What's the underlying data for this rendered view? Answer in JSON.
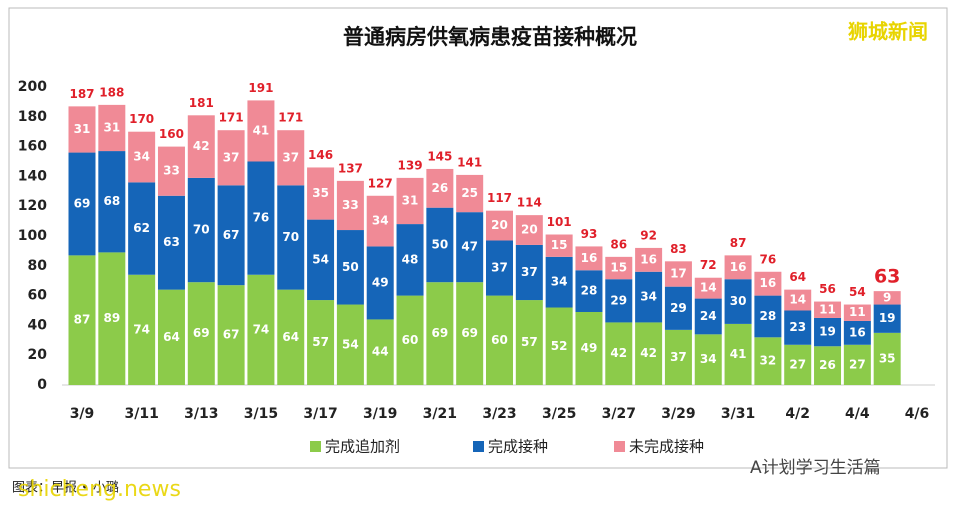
{
  "chart_data": {
    "type": "stacked-bar",
    "title": "普通病房供氧病患疫苗接种概况",
    "categories": [
      "3/9",
      null,
      "3/11",
      null,
      "3/13",
      null,
      "3/15",
      null,
      "3/17",
      null,
      "3/19",
      null,
      "3/21",
      null,
      "3/23",
      null,
      "3/25",
      null,
      "3/27",
      null,
      "3/29",
      null,
      "3/31",
      null,
      "4/2",
      null,
      "4/4",
      null,
      "4/6"
    ],
    "series": [
      {
        "name": "完成追加剂",
        "color": "#8ccb4a",
        "values": [
          87,
          89,
          74,
          64,
          69,
          67,
          74,
          64,
          57,
          54,
          44,
          60,
          69,
          69,
          60,
          57,
          52,
          49,
          42,
          42,
          37,
          34,
          41,
          32,
          27,
          26,
          27,
          35,
          null
        ]
      },
      {
        "name": "完成接种",
        "color": "#1565b8",
        "values": [
          69,
          68,
          62,
          63,
          70,
          67,
          76,
          70,
          54,
          50,
          49,
          48,
          50,
          47,
          37,
          37,
          34,
          28,
          29,
          34,
          29,
          24,
          30,
          28,
          23,
          19,
          16,
          19,
          null
        ]
      },
      {
        "name": "未完成接种",
        "color": "#f08a96",
        "values": [
          31,
          31,
          34,
          33,
          42,
          37,
          41,
          37,
          35,
          33,
          34,
          31,
          26,
          25,
          20,
          20,
          15,
          16,
          15,
          16,
          17,
          14,
          16,
          16,
          14,
          11,
          11,
          9,
          null
        ]
      }
    ],
    "totals": [
      187,
      188,
      170,
      160,
      181,
      171,
      191,
      171,
      146,
      137,
      127,
      139,
      145,
      141,
      117,
      114,
      101,
      93,
      86,
      92,
      83,
      72,
      87,
      76,
      64,
      56,
      54,
      63,
      null
    ],
    "ylim": [
      0,
      200
    ],
    "yticks": [
      0,
      20,
      40,
      60,
      80,
      100,
      120,
      140,
      160,
      180,
      200
    ],
    "grid": false,
    "legend": "bottom"
  },
  "watermark": "狮城新闻",
  "credit": "图表：早报 • 小璐",
  "site": "shicheng.news",
  "source_account": "A计划学习生活篇"
}
